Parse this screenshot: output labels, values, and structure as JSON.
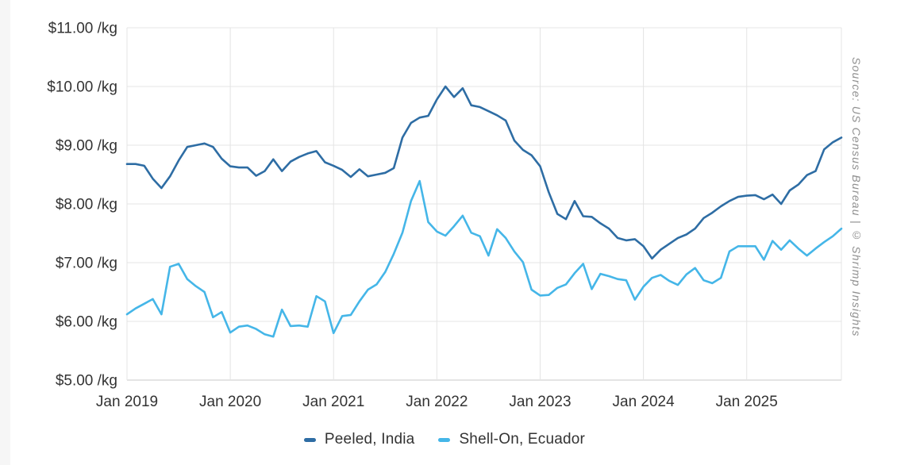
{
  "source_note": "Source: US Census Bureau | © Shrimp Insights",
  "colors": {
    "grid": "#e4e4e4",
    "axis": "#c9c9c9",
    "tick_text": "#333333",
    "source_text": "#8f8f8f",
    "background": "#ffffff"
  },
  "legend": {
    "items": [
      "Peeled, India",
      "Shell-On, Ecuador"
    ]
  },
  "chart_data": {
    "type": "line",
    "title": "",
    "xlabel": "",
    "ylabel": "",
    "unit": "$/kg",
    "ylim": [
      5,
      11
    ],
    "grid": true,
    "legend_position": "bottom",
    "x_range": "Jan 2019 – Dec 2025, monthly",
    "y_tick_labels": [
      "$11.00 /kg",
      "$10.00 /kg",
      "$9.00 /kg",
      "$8.00 /kg",
      "$7.00 /kg",
      "$6.00 /kg",
      "$5.00 /kg"
    ],
    "x_tick_labels": [
      "Jan 2019",
      "Jan 2020",
      "Jan 2021",
      "Jan 2022",
      "Jan 2023",
      "Jan 2024",
      "Jan 2025"
    ],
    "months_per_tick": 12,
    "series": [
      {
        "name": "Peeled, India",
        "color": "#2e6da4",
        "values": [
          8.68,
          8.68,
          8.65,
          8.43,
          8.27,
          8.47,
          8.74,
          8.97,
          9.0,
          9.03,
          8.97,
          8.77,
          8.64,
          8.62,
          8.62,
          8.48,
          8.56,
          8.76,
          8.56,
          8.72,
          8.8,
          8.86,
          8.9,
          8.71,
          8.65,
          8.58,
          8.46,
          8.59,
          8.47,
          8.5,
          8.53,
          8.61,
          9.13,
          9.38,
          9.47,
          9.5,
          9.78,
          10.0,
          9.82,
          9.97,
          9.68,
          9.65,
          9.58,
          9.51,
          9.42,
          9.08,
          8.92,
          8.83,
          8.64,
          8.2,
          7.83,
          7.74,
          8.05,
          7.79,
          7.78,
          7.67,
          7.58,
          7.42,
          7.38,
          7.4,
          7.28,
          7.07,
          7.22,
          7.32,
          7.42,
          7.48,
          7.58,
          7.76,
          7.85,
          7.96,
          8.05,
          8.12,
          8.14,
          8.15,
          8.08,
          8.16,
          8.0,
          8.23,
          8.33,
          8.49,
          8.56,
          8.93,
          9.05,
          9.13
        ]
      },
      {
        "name": "Shell-On, Ecuador",
        "color": "#45b6e8",
        "values": [
          6.12,
          6.22,
          6.3,
          6.38,
          6.12,
          6.93,
          6.98,
          6.72,
          6.6,
          6.5,
          6.07,
          6.16,
          5.81,
          5.91,
          5.93,
          5.87,
          5.78,
          5.74,
          6.2,
          5.92,
          5.93,
          5.91,
          6.43,
          6.34,
          5.8,
          6.09,
          6.11,
          6.34,
          6.54,
          6.63,
          6.84,
          7.15,
          7.51,
          8.05,
          8.39,
          7.69,
          7.53,
          7.46,
          7.62,
          7.8,
          7.51,
          7.45,
          7.12,
          7.57,
          7.42,
          7.19,
          7.01,
          6.54,
          6.44,
          6.45,
          6.57,
          6.63,
          6.82,
          6.98,
          6.55,
          6.81,
          6.77,
          6.72,
          6.7,
          6.37,
          6.59,
          6.74,
          6.79,
          6.69,
          6.62,
          6.8,
          6.91,
          6.7,
          6.65,
          6.74,
          7.19,
          7.28,
          7.28,
          7.28,
          7.05,
          7.37,
          7.22,
          7.38,
          7.24,
          7.12,
          7.24,
          7.35,
          7.45,
          7.58
        ]
      }
    ]
  }
}
